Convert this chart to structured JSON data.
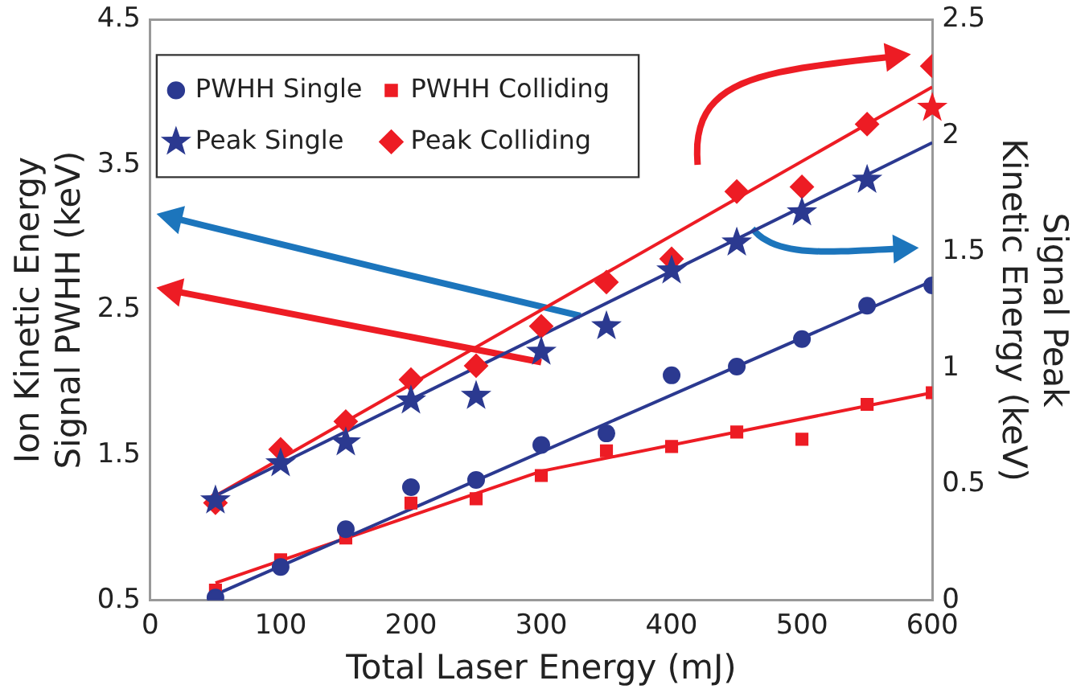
{
  "chart_data": {
    "type": "scatter",
    "xlabel": "Total Laser Energy (mJ)",
    "ylabel": "Ion Kinetic Energy\nSignal PWHH (keV)",
    "y2label": "Signal Peak\nKinetic Energy (keV)",
    "x": [
      50,
      100,
      150,
      200,
      250,
      300,
      350,
      400,
      450,
      500,
      550,
      600
    ],
    "xlim": [
      0,
      600
    ],
    "xticks": [
      0,
      100,
      200,
      300,
      400,
      500,
      600
    ],
    "ylim": [
      0.5,
      4.5
    ],
    "yticks": [
      0.5,
      1.5,
      2.5,
      3.5,
      4.5
    ],
    "y2lim": [
      0,
      2.5
    ],
    "y2ticks": [
      0,
      0.5,
      1,
      1.5,
      2,
      2.5
    ],
    "grid": false,
    "legend": "top left",
    "series": [
      {
        "name": "PWHH Single",
        "color": "#2b3990",
        "marker": "circle",
        "axis": "y",
        "values": [
          0.52,
          0.73,
          0.99,
          1.28,
          1.33,
          1.57,
          1.65,
          2.05,
          2.11,
          2.3,
          2.53,
          2.67
        ]
      },
      {
        "name": "PWHH Colliding",
        "color": "#ed1c24",
        "marker": "square",
        "axis": "y",
        "values": [
          0.57,
          0.78,
          0.93,
          1.17,
          1.2,
          1.36,
          1.53,
          1.56,
          1.66,
          1.61,
          1.85,
          1.93
        ]
      },
      {
        "name": "Peak Single",
        "color": "#2b3990",
        "colors": [
          "#2b3990",
          "#2b3990",
          "#2b3990",
          "#2b3990",
          "#2b3990",
          "#2b3990",
          "#2b3990",
          "#2b3990",
          "#2b3990",
          "#2b3990",
          "#2b3990",
          "#ed1c24"
        ],
        "marker": "star",
        "axis": "y2",
        "values": [
          0.43,
          0.59,
          0.68,
          0.86,
          0.88,
          1.07,
          1.18,
          1.42,
          1.54,
          1.67,
          1.81,
          2.12
        ]
      },
      {
        "name": "Peak Colliding",
        "color": "#ed1c24",
        "marker": "diamond",
        "axis": "y2",
        "values": [
          0.42,
          0.65,
          0.77,
          0.95,
          1.01,
          1.18,
          1.37,
          1.47,
          1.76,
          1.78,
          2.05,
          2.3
        ]
      },
      {
        "type": "line",
        "color": "#2b3990",
        "marker": "none",
        "axis": "y",
        "x": [
          50,
          600
        ],
        "values": [
          0.54,
          2.7
        ]
      },
      {
        "type": "line",
        "color": "#ed1c24",
        "marker": "none",
        "axis": "y",
        "x": [
          50,
          300,
          600
        ],
        "values": [
          0.62,
          1.39,
          1.93
        ]
      },
      {
        "type": "line",
        "color": "#2b3990",
        "marker": "none",
        "axis": "y2",
        "x": [
          50,
          600
        ],
        "values": [
          0.45,
          1.97
        ]
      },
      {
        "type": "line",
        "color": "#ed1c24",
        "marker": "none",
        "axis": "y2",
        "x": [
          50,
          600
        ],
        "values": [
          0.45,
          2.21
        ]
      }
    ]
  }
}
